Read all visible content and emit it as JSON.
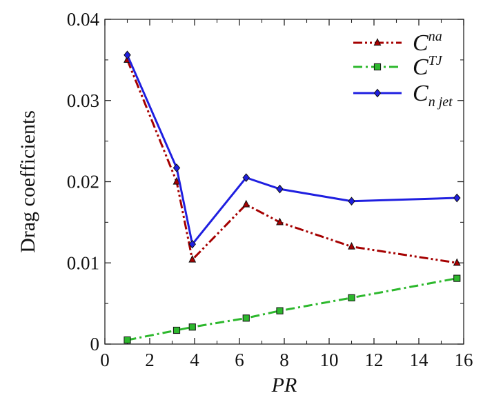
{
  "chart_data": {
    "type": "line",
    "xlabel": "PR",
    "ylabel": "Drag coefficients",
    "xlim": [
      0,
      16
    ],
    "ylim": [
      0,
      0.04
    ],
    "x_ticks": [
      "0",
      "2",
      "4",
      "6",
      "8",
      "10",
      "12",
      "14",
      "16"
    ],
    "y_ticks": [
      "0",
      "0.01",
      "0.02",
      "0.03",
      "0.04"
    ],
    "x_tick_values": [
      0,
      2,
      4,
      6,
      8,
      10,
      12,
      14,
      16
    ],
    "y_tick_values": [
      0,
      0.01,
      0.02,
      0.03,
      0.04
    ],
    "grid": false,
    "legend_position": "top-right",
    "series": [
      {
        "name": "C_na",
        "label_base": "C",
        "label_sub": "na",
        "color": "#a50000",
        "line_style": "dash-dot-dot",
        "marker": "triangle",
        "x": [
          1.0,
          3.2,
          3.9,
          6.3,
          7.8,
          11.0,
          15.7
        ],
        "values": [
          0.035,
          0.02,
          0.0104,
          0.0172,
          0.015,
          0.012,
          0.01
        ]
      },
      {
        "name": "C_TJ",
        "label_base": "C",
        "label_sub": "TJ",
        "color": "#2db82d",
        "line_style": "dash-dot",
        "marker": "square",
        "x": [
          1.0,
          3.2,
          3.9,
          6.3,
          7.8,
          11.0,
          15.7
        ],
        "values": [
          0.0005,
          0.0017,
          0.0021,
          0.0032,
          0.0041,
          0.0057,
          0.0081
        ]
      },
      {
        "name": "C_n jet",
        "label_base": "C",
        "label_sub": "n jet",
        "color": "#1f1fe0",
        "line_style": "solid",
        "marker": "diamond",
        "x": [
          1.0,
          3.2,
          3.9,
          6.3,
          7.8,
          11.0,
          15.7
        ],
        "values": [
          0.0356,
          0.0217,
          0.0123,
          0.0205,
          0.0191,
          0.0176,
          0.018
        ]
      }
    ]
  }
}
